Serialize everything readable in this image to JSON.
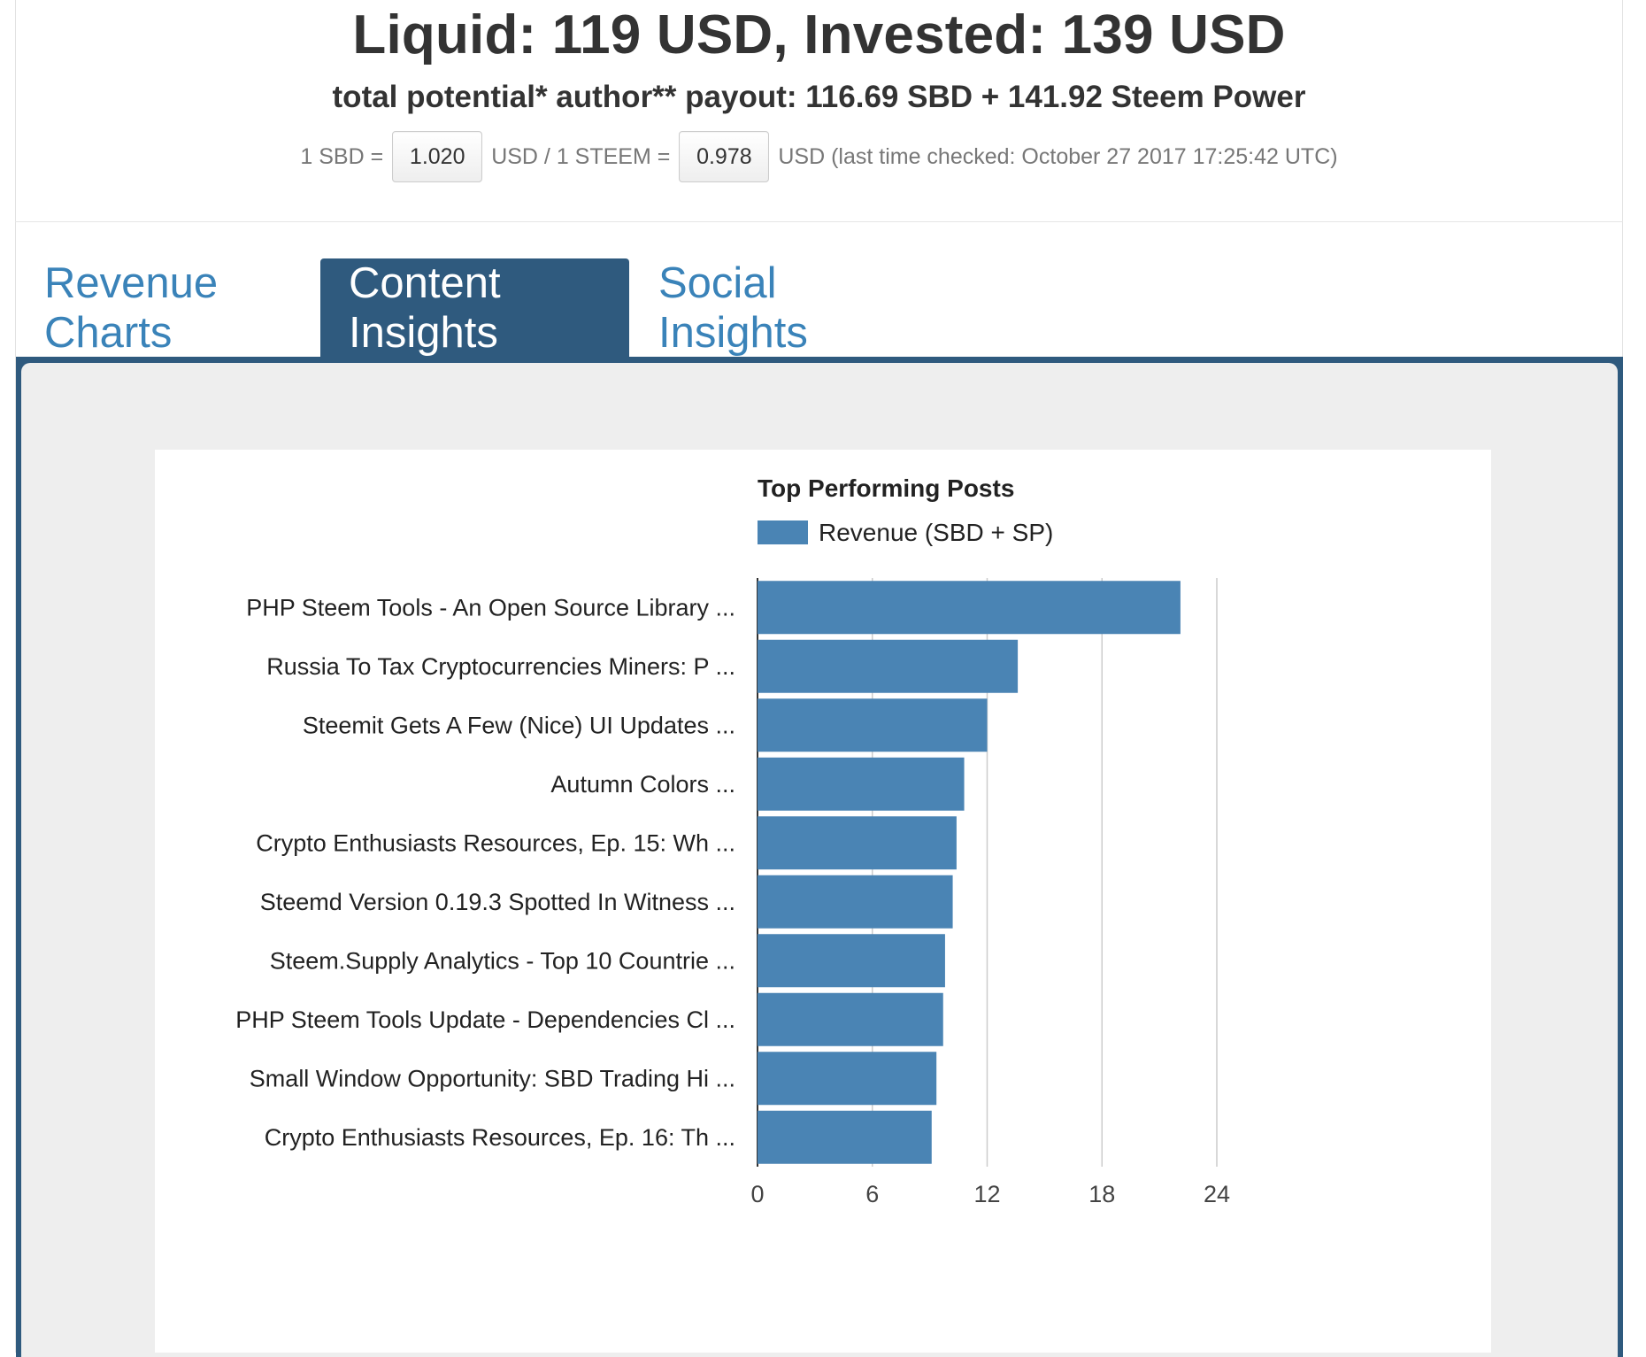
{
  "header": {
    "title": "Liquid: 119 USD, Invested: 139 USD",
    "subtitle": "total potential* author** payout: 116.69 SBD + 141.92 Steem Power",
    "rates": {
      "sbd_prefix": "1 SBD =",
      "sbd_value": "1.020",
      "steem_prefix": "USD / 1 STEEM =",
      "steem_value": "0.978",
      "suffix": "USD (last time checked: October 27 2017 17:25:42 UTC)"
    }
  },
  "tabs": [
    {
      "label": "Revenue Charts",
      "active": false
    },
    {
      "label": "Content Insights",
      "active": true
    },
    {
      "label": "Social Insights",
      "active": false
    }
  ],
  "colors": {
    "tab_active": "#2f5a7e",
    "tab_link": "#3a83b9",
    "bar": "#4a84b4",
    "panel_bg": "#eeeeee"
  },
  "chart_data": {
    "type": "bar",
    "orientation": "horizontal",
    "title": "Top Performing Posts",
    "legend": "Revenue (SBD + SP)",
    "categories": [
      "PHP Steem Tools - An Open Source Library ...",
      "Russia To Tax Cryptocurrencies Miners: P ...",
      "Steemit Gets A Few (Nice) UI Updates ...",
      "Autumn Colors ...",
      "Crypto Enthusiasts Resources, Ep. 15: Wh ...",
      "Steemd Version 0.19.3 Spotted In Witness ...",
      "Steem.Supply Analytics - Top 10 Countrie ...",
      "PHP Steem Tools Update - Dependencies Cl ...",
      "Small Window Opportunity: SBD Trading Hi ...",
      "Crypto Enthusiasts Resources, Ep. 16: Th ..."
    ],
    "series": [
      {
        "name": "Revenue (SBD + SP)",
        "values": [
          22.1,
          13.6,
          12.0,
          10.8,
          10.4,
          10.2,
          9.8,
          9.7,
          9.35,
          9.1
        ]
      }
    ],
    "xlim": [
      0,
      24
    ],
    "xticks": [
      "0",
      "6",
      "12",
      "18",
      "24"
    ],
    "grid": true,
    "legend_position": "top"
  }
}
